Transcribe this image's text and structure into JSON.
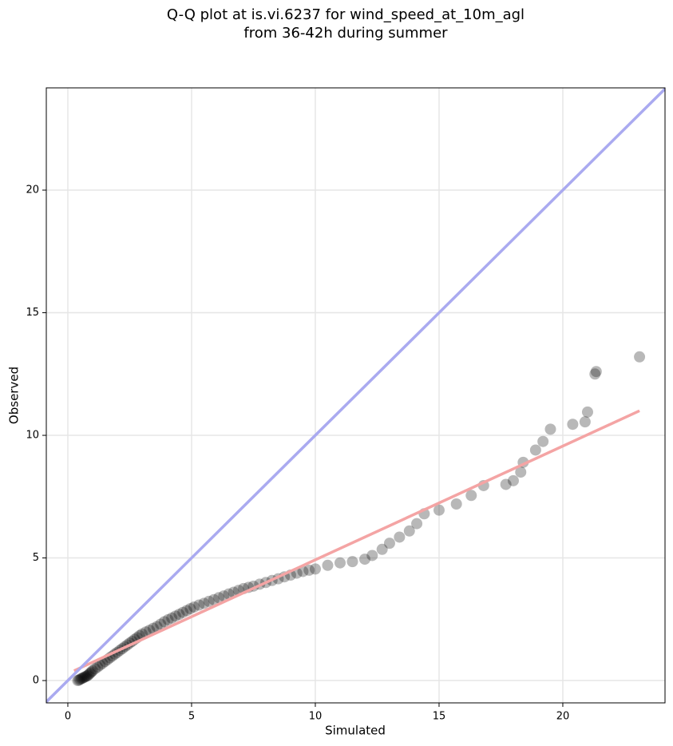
{
  "chart_data": {
    "type": "qq-scatter",
    "title": [
      "Q-Q plot at is.vi.6237 for wind_speed_at_10m_agl",
      "from 36-42h during summer"
    ],
    "x_label": "Simulated",
    "y_label": "Observed",
    "xlim": [
      -0.87,
      24.13
    ],
    "ylim": [
      -0.91,
      24.17
    ],
    "xticks": [
      0,
      5,
      10,
      15,
      20
    ],
    "yticks": [
      0,
      5,
      10,
      15,
      20
    ],
    "grid": true,
    "points": {
      "color": "#000000",
      "x": [
        0.4,
        0.45,
        0.5,
        0.55,
        0.6,
        0.65,
        0.7,
        0.75,
        0.8,
        0.85,
        0.9,
        0.95,
        1.0,
        1.1,
        1.2,
        1.3,
        1.4,
        1.5,
        1.6,
        1.7,
        1.8,
        1.9,
        2.0,
        2.1,
        2.2,
        2.3,
        2.4,
        2.5,
        2.6,
        2.7,
        2.8,
        2.9,
        3.0,
        3.15,
        3.3,
        3.45,
        3.6,
        3.75,
        3.9,
        4.05,
        4.2,
        4.35,
        4.5,
        4.65,
        4.8,
        4.95,
        5.1,
        5.3,
        5.5,
        5.7,
        5.9,
        6.1,
        6.3,
        6.5,
        6.7,
        6.9,
        7.1,
        7.3,
        7.5,
        7.75,
        8.0,
        8.25,
        8.5,
        8.75,
        9.0,
        9.25,
        9.5,
        9.75,
        10.0,
        10.5,
        11.0,
        11.5,
        12.0,
        12.3,
        12.7,
        13.0,
        13.4,
        13.8,
        14.1,
        14.4,
        15.0,
        15.7,
        16.3,
        16.8,
        17.7,
        18.0,
        18.3,
        18.4,
        18.9,
        19.2,
        19.5,
        20.4,
        20.9,
        21.0,
        21.3,
        21.35,
        23.1
      ],
      "values": [
        0.0,
        0.02,
        0.05,
        0.08,
        0.1,
        0.13,
        0.15,
        0.18,
        0.2,
        0.25,
        0.3,
        0.35,
        0.4,
        0.48,
        0.55,
        0.63,
        0.7,
        0.78,
        0.85,
        0.93,
        1.0,
        1.08,
        1.15,
        1.23,
        1.3,
        1.38,
        1.45,
        1.53,
        1.6,
        1.68,
        1.75,
        1.83,
        1.9,
        1.98,
        2.05,
        2.13,
        2.2,
        2.3,
        2.4,
        2.48,
        2.55,
        2.63,
        2.7,
        2.78,
        2.85,
        2.93,
        3.0,
        3.08,
        3.15,
        3.23,
        3.3,
        3.38,
        3.45,
        3.53,
        3.6,
        3.68,
        3.75,
        3.8,
        3.85,
        3.93,
        4.0,
        4.08,
        4.15,
        4.23,
        4.3,
        4.38,
        4.45,
        4.5,
        4.55,
        4.7,
        4.8,
        4.85,
        4.95,
        5.1,
        5.35,
        5.6,
        5.85,
        6.1,
        6.4,
        6.8,
        6.95,
        7.2,
        7.55,
        7.95,
        8.0,
        8.15,
        8.5,
        8.9,
        9.4,
        9.75,
        10.25,
        10.45,
        10.55,
        10.95,
        12.5,
        12.6,
        13.2
      ]
    },
    "identity_line": {
      "color": "#aaaaf0",
      "x": [
        -0.87,
        24.13
      ],
      "values": [
        -0.87,
        24.13
      ]
    },
    "fit_line": {
      "color": "#f4a4a4",
      "x": [
        0.25,
        23.1
      ],
      "values": [
        0.4,
        11.0
      ]
    }
  }
}
